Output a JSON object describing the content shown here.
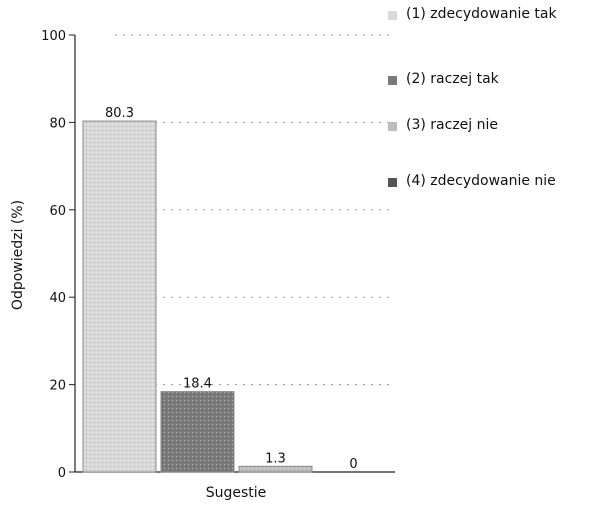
{
  "chart_data": {
    "type": "bar",
    "xlabel": "Sugestie",
    "ylabel": "Odpowiedzi (%)",
    "ylim": [
      0,
      100
    ],
    "yticks": [
      0,
      20,
      40,
      60,
      80,
      100
    ],
    "grid": true,
    "legend_position": "right",
    "series": [
      {
        "name": "(1) zdecydowanie tak",
        "value": 80.3,
        "label": "80.3",
        "color": "#d9d9d9"
      },
      {
        "name": "(2) raczej tak",
        "value": 18.4,
        "label": "18.4",
        "color": "#7a7a7a"
      },
      {
        "name": "(3) raczej nie",
        "value": 1.3,
        "label": "1.3",
        "color": "#bdbdbd"
      },
      {
        "name": "(4) zdecydowanie nie",
        "value": 0,
        "label": "0",
        "color": "#555555"
      }
    ]
  }
}
